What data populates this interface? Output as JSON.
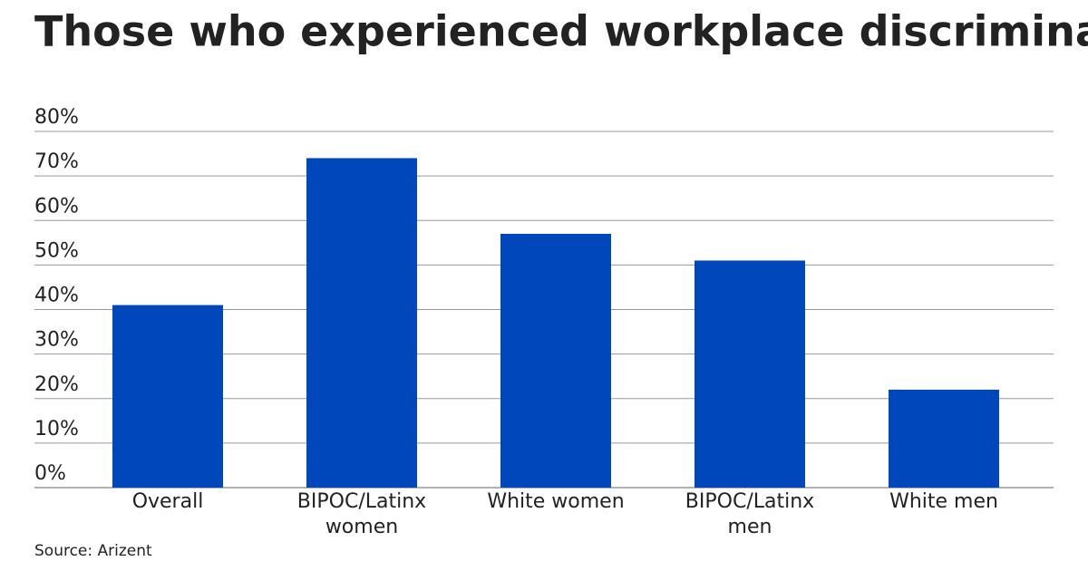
{
  "chart_data": {
    "type": "bar",
    "title": "Those who experienced workplace discrimination",
    "categories": [
      "Overall",
      "BIPOC/Latinx women",
      "White women",
      "BIPOC/Latinx men",
      "White men"
    ],
    "values": [
      41,
      74,
      57,
      51,
      22
    ],
    "color": "#0047bb",
    "ylim": [
      0,
      80
    ],
    "yticks": [
      {
        "value": 0,
        "label": "0%"
      },
      {
        "value": 10,
        "label": "10%"
      },
      {
        "value": 20,
        "label": "20%"
      },
      {
        "value": 30,
        "label": "30%"
      },
      {
        "value": 40,
        "label": "40%"
      },
      {
        "value": 50,
        "label": "50%"
      },
      {
        "value": 60,
        "label": "60%"
      },
      {
        "value": 70,
        "label": "70%"
      },
      {
        "value": 80,
        "label": "80%"
      }
    ],
    "grid": true,
    "source": "Source: Arizent"
  }
}
